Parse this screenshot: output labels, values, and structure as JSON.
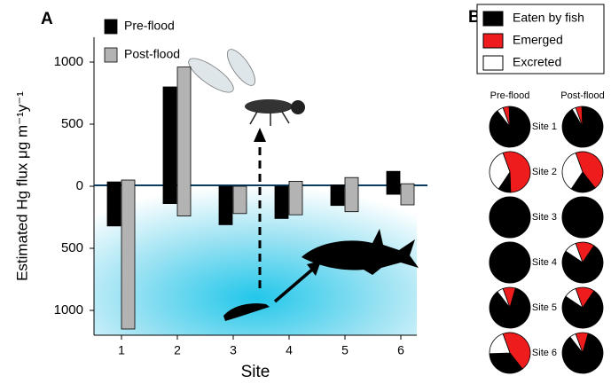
{
  "chart_data": [
    {
      "type": "range_bar",
      "label": "A",
      "y_label": "Estimated Hg flux μg m⁻¹y⁻¹",
      "x_label": "Site",
      "categories": [
        "1",
        "2",
        "3",
        "4",
        "5",
        "6"
      ],
      "series": [
        {
          "name": "Pre-flood",
          "color": "#000000",
          "low": [
            -320,
            -140,
            -310,
            -260,
            -155,
            -65
          ],
          "high": [
            35,
            800,
            0,
            0,
            10,
            120
          ]
        },
        {
          "name": "Post-flood",
          "color": "#b3b3b3",
          "low": [
            -1150,
            -240,
            -220,
            -230,
            -205,
            -150
          ],
          "high": [
            50,
            960,
            0,
            40,
            70,
            20
          ]
        }
      ],
      "ylim": [
        -1200,
        1200
      ],
      "yticks": [
        {
          "value": -1000,
          "label": "1000"
        },
        {
          "value": -500,
          "label": "500"
        },
        0,
        500,
        1000
      ]
    },
    {
      "type": "pie_grid",
      "label": "B",
      "categories": [
        "Eaten by fish",
        "Emerged",
        "Excreted"
      ],
      "colors": [
        "#000000",
        "#ee1c1c",
        "#ffffff"
      ],
      "groups": [
        "Pre-flood",
        "Post-flood"
      ],
      "sites": [
        "Site 1",
        "Site 2",
        "Site 3",
        "Site 4",
        "Site 5",
        "Site 6"
      ],
      "values": [
        [
          [
            90,
            5,
            5
          ],
          [
            92,
            5,
            3
          ]
        ],
        [
          [
            10,
            55,
            35
          ],
          [
            20,
            45,
            35
          ]
        ],
        [
          [
            100,
            0,
            0
          ],
          [
            100,
            0,
            0
          ]
        ],
        [
          [
            100,
            0,
            0
          ],
          [
            75,
            15,
            10
          ]
        ],
        [
          [
            85,
            10,
            5
          ],
          [
            75,
            15,
            10
          ]
        ],
        [
          [
            35,
            45,
            20
          ],
          [
            85,
            10,
            5
          ]
        ]
      ]
    }
  ]
}
